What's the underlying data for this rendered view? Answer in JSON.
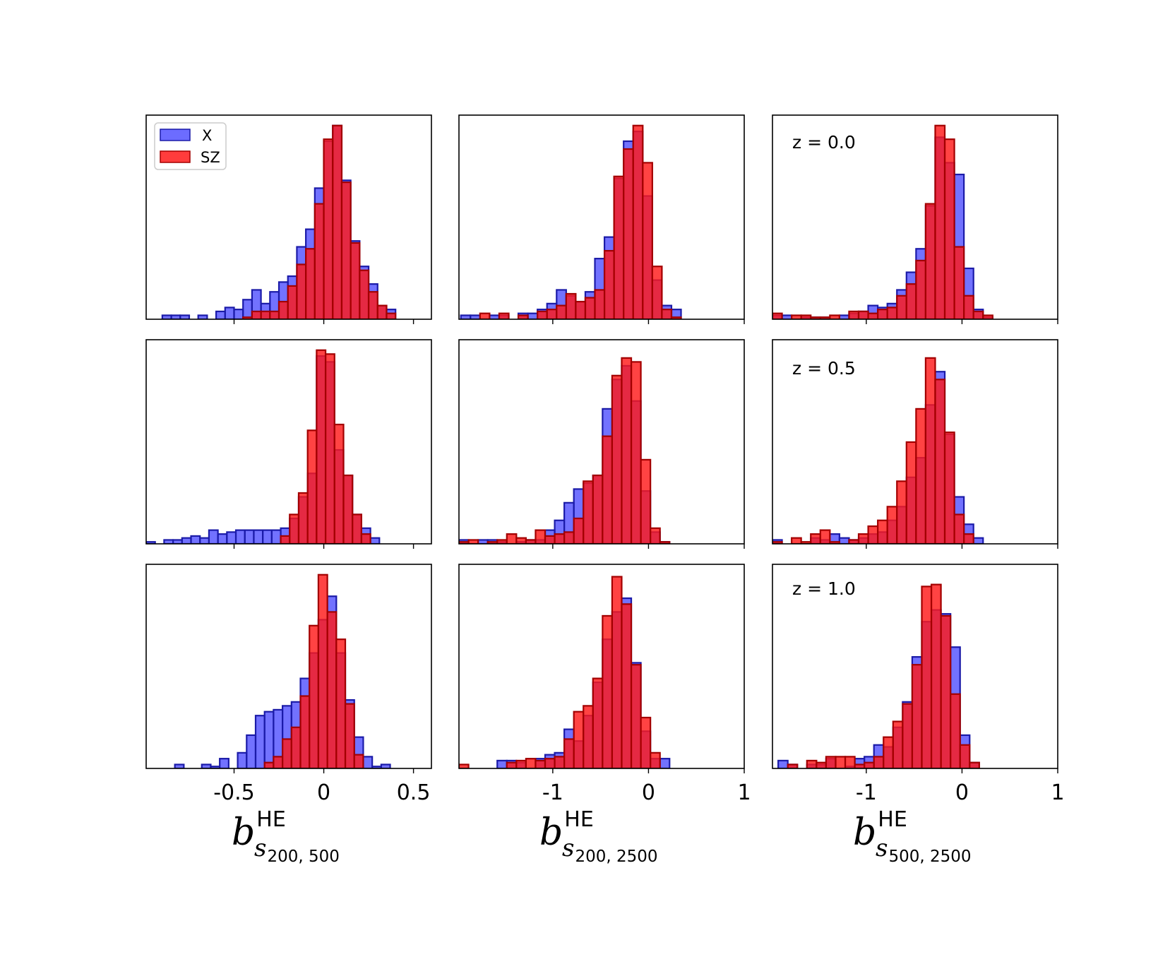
{
  "colors": {
    "x": "#3b3bff",
    "x_edge": "#1b1ba8",
    "sz": "#ff1a1a",
    "sz_edge": "#a30000"
  },
  "legend": [
    {
      "label": "X",
      "color": "#3b3bff"
    },
    {
      "label": "SZ",
      "color": "#ff1a1a"
    }
  ],
  "row_annotations": [
    "z = 0.0",
    "z = 0.5",
    "z = 1.0"
  ],
  "columns": [
    {
      "xlabel_base": "b",
      "xlabel_sup": "HE",
      "xlabel_sub": "s",
      "xlabel_subsub": "200, 500",
      "xlim": [
        -0.99,
        0.6
      ],
      "ticks": [
        -0.5,
        0,
        0.5
      ],
      "tick_labels": [
        "-0.5",
        "0",
        "0.5"
      ]
    },
    {
      "xlabel_base": "b",
      "xlabel_sup": "HE",
      "xlabel_sub": "s",
      "xlabel_subsub": "200, 2500",
      "xlim": [
        -1.98,
        1.0
      ],
      "ticks": [
        -1,
        0,
        1
      ],
      "tick_labels": [
        "-1",
        "0",
        "1"
      ]
    },
    {
      "xlabel_base": "b",
      "xlabel_sup": "HE",
      "xlabel_sub": "s",
      "xlabel_subsub": "500, 2500",
      "xlim": [
        -1.98,
        1.0
      ],
      "ticks": [
        -1,
        0,
        1
      ],
      "tick_labels": [
        "-1",
        "0",
        "1"
      ]
    }
  ],
  "chart_data": [
    {
      "type": "bar",
      "row": 0,
      "col": 0,
      "title": "",
      "bin_start": -0.9,
      "bin_width": 0.05,
      "ylim": [
        0,
        1.0
      ],
      "series": [
        {
          "name": "X",
          "values": [
            0.02,
            0.02,
            0.02,
            0.0,
            0.02,
            0.0,
            0.04,
            0.06,
            0.05,
            0.1,
            0.15,
            0.08,
            0.14,
            0.19,
            0.22,
            0.37,
            0.46,
            0.67,
            0.91,
            0.99,
            0.71,
            0.4,
            0.27,
            0.18,
            0.07,
            0.05
          ]
        },
        {
          "name": "SZ",
          "values": [
            0.0,
            0.0,
            0.0,
            0.0,
            0.0,
            0.0,
            0.0,
            0.0,
            0.0,
            0.01,
            0.04,
            0.04,
            0.04,
            0.09,
            0.17,
            0.28,
            0.36,
            0.59,
            0.92,
            0.99,
            0.7,
            0.39,
            0.25,
            0.14,
            0.07,
            0.03
          ]
        }
      ]
    },
    {
      "type": "bar",
      "row": 0,
      "col": 1,
      "title": "",
      "bin_start": -1.96,
      "bin_width": 0.1,
      "ylim": [
        0,
        1.0
      ],
      "series": [
        {
          "name": "X",
          "values": [
            0.02,
            0.02,
            0.0,
            0.02,
            0.02,
            0.0,
            0.03,
            0.03,
            0.05,
            0.08,
            0.15,
            0.12,
            0.09,
            0.14,
            0.31,
            0.42,
            0.72,
            0.91,
            0.96,
            0.63,
            0.2,
            0.07,
            0.05
          ]
        },
        {
          "name": "SZ",
          "values": [
            0.0,
            0.0,
            0.03,
            0.0,
            0.03,
            0.0,
            0.02,
            0.0,
            0.04,
            0.05,
            0.07,
            0.13,
            0.09,
            0.11,
            0.15,
            0.35,
            0.73,
            0.87,
            0.99,
            0.8,
            0.27,
            0.05,
            0.01
          ]
        }
      ]
    },
    {
      "type": "bar",
      "row": 0,
      "col": 2,
      "title": "",
      "bin_start": -1.98,
      "bin_width": 0.1,
      "ylim": [
        0,
        1.0
      ],
      "series": [
        {
          "name": "X",
          "values": [
            0.02,
            0.02,
            0.0,
            0.01,
            0.01,
            0.01,
            0.0,
            0.02,
            0.03,
            0.04,
            0.07,
            0.06,
            0.08,
            0.15,
            0.24,
            0.36,
            0.58,
            0.93,
            0.8,
            0.74,
            0.26,
            0.05,
            0.01
          ]
        },
        {
          "name": "SZ",
          "values": [
            0.03,
            0.0,
            0.02,
            0.02,
            0.01,
            0.01,
            0.02,
            0.0,
            0.04,
            0.04,
            0.03,
            0.05,
            0.06,
            0.12,
            0.18,
            0.3,
            0.59,
            0.99,
            0.92,
            0.37,
            0.12,
            0.04,
            0.02
          ]
        }
      ]
    },
    {
      "type": "bar",
      "row": 1,
      "col": 0,
      "title": "",
      "bin_start": -0.99,
      "bin_width": 0.05,
      "ylim": [
        0,
        1.0
      ],
      "series": [
        {
          "name": "X",
          "values": [
            0.01,
            0.0,
            0.02,
            0.02,
            0.03,
            0.04,
            0.03,
            0.07,
            0.05,
            0.06,
            0.07,
            0.07,
            0.07,
            0.07,
            0.07,
            0.08,
            0.13,
            0.24,
            0.36,
            0.96,
            0.93,
            0.48,
            0.35,
            0.15,
            0.08,
            0.03
          ]
        },
        {
          "name": "SZ",
          "values": [
            0.0,
            0.0,
            0.0,
            0.0,
            0.0,
            0.0,
            0.0,
            0.0,
            0.0,
            0.0,
            0.0,
            0.0,
            0.0,
            0.0,
            0.0,
            0.04,
            0.15,
            0.26,
            0.58,
            0.99,
            0.97,
            0.61,
            0.35,
            0.15,
            0.05,
            0.0
          ]
        }
      ]
    },
    {
      "type": "bar",
      "row": 1,
      "col": 1,
      "title": "",
      "bin_start": -1.98,
      "bin_width": 0.1,
      "ylim": [
        0,
        1.0
      ],
      "series": [
        {
          "name": "X",
          "values": [
            0.02,
            0.0,
            0.02,
            0.02,
            0.01,
            0.0,
            0.01,
            0.02,
            0.02,
            0.07,
            0.12,
            0.21,
            0.28,
            0.31,
            0.35,
            0.69,
            0.84,
            0.91,
            0.73,
            0.27,
            0.06,
            0.01
          ]
        },
        {
          "name": "SZ",
          "values": [
            0.01,
            0.02,
            0.0,
            0.01,
            0.02,
            0.05,
            0.03,
            0.02,
            0.07,
            0.04,
            0.05,
            0.06,
            0.13,
            0.32,
            0.35,
            0.55,
            0.86,
            0.95,
            0.93,
            0.43,
            0.08,
            0.01
          ]
        }
      ]
    },
    {
      "type": "bar",
      "row": 1,
      "col": 2,
      "title": "",
      "bin_start": -1.98,
      "bin_width": 0.1,
      "ylim": [
        0,
        1.0
      ],
      "series": [
        {
          "name": "X",
          "values": [
            0.02,
            0.0,
            0.0,
            0.0,
            0.03,
            0.02,
            0.05,
            0.03,
            0.02,
            0.03,
            0.05,
            0.06,
            0.12,
            0.19,
            0.34,
            0.44,
            0.71,
            0.88,
            0.56,
            0.24,
            0.1,
            0.03
          ]
        },
        {
          "name": "SZ",
          "values": [
            0.01,
            0.0,
            0.03,
            0.01,
            0.05,
            0.07,
            0.01,
            0.0,
            0.02,
            0.05,
            0.09,
            0.12,
            0.19,
            0.32,
            0.52,
            0.69,
            0.95,
            0.84,
            0.57,
            0.15,
            0.05,
            0.0
          ]
        }
      ]
    },
    {
      "type": "bar",
      "row": 2,
      "col": 0,
      "title": "",
      "bin_start": -0.83,
      "bin_width": 0.05,
      "ylim": [
        0,
        1.0
      ],
      "series": [
        {
          "name": "X",
          "values": [
            0.02,
            0.0,
            0.0,
            0.02,
            0.01,
            0.05,
            0.0,
            0.08,
            0.17,
            0.27,
            0.29,
            0.3,
            0.32,
            0.34,
            0.46,
            0.59,
            0.76,
            0.88,
            0.59,
            0.35,
            0.16,
            0.06,
            0.01,
            0.02
          ]
        },
        {
          "name": "SZ",
          "values": [
            0.0,
            0.0,
            0.0,
            0.0,
            0.0,
            0.0,
            0.0,
            0.0,
            0.0,
            0.0,
            0.03,
            0.06,
            0.15,
            0.21,
            0.37,
            0.73,
            0.99,
            0.8,
            0.66,
            0.33,
            0.07,
            0.0,
            0.0,
            0.0
          ]
        }
      ]
    },
    {
      "type": "bar",
      "row": 2,
      "col": 1,
      "title": "",
      "bin_start": -1.98,
      "bin_width": 0.1,
      "ylim": [
        0,
        1.0
      ],
      "series": [
        {
          "name": "X",
          "values": [
            0.0,
            0.0,
            0.0,
            0.0,
            0.04,
            0.04,
            0.03,
            0.0,
            0.05,
            0.07,
            0.08,
            0.2,
            0.14,
            0.27,
            0.44,
            0.66,
            0.8,
            0.87,
            0.54,
            0.19,
            0.05,
            0.05
          ]
        },
        {
          "name": "SZ",
          "values": [
            0.02,
            0.0,
            0.0,
            0.0,
            0.0,
            0.03,
            0.04,
            0.05,
            0.04,
            0.05,
            0.06,
            0.15,
            0.29,
            0.32,
            0.46,
            0.78,
            0.98,
            0.84,
            0.53,
            0.26,
            0.08,
            0.0
          ]
        }
      ]
    },
    {
      "type": "bar",
      "row": 2,
      "col": 2,
      "title": "",
      "bin_start": -1.92,
      "bin_width": 0.1,
      "ylim": [
        0,
        1.0
      ],
      "series": [
        {
          "name": "X",
          "values": [
            0.04,
            0.02,
            0.0,
            0.02,
            0.02,
            0.05,
            0.0,
            0.01,
            0.05,
            0.06,
            0.12,
            0.11,
            0.21,
            0.34,
            0.57,
            0.75,
            0.81,
            0.79,
            0.62,
            0.17,
            0.03
          ]
        },
        {
          "name": "SZ",
          "values": [
            0.0,
            0.02,
            0.0,
            0.04,
            0.03,
            0.06,
            0.06,
            0.06,
            0.02,
            0.03,
            0.06,
            0.16,
            0.24,
            0.33,
            0.53,
            0.93,
            0.94,
            0.78,
            0.38,
            0.12,
            0.03
          ]
        }
      ]
    }
  ]
}
